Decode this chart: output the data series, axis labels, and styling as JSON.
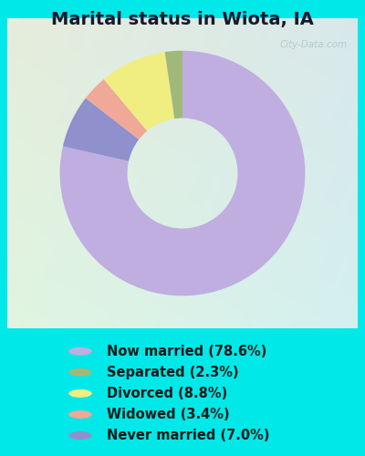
{
  "title": "Marital status in Wiota, IA",
  "title_fontsize": 14,
  "title_fontweight": "bold",
  "bg_outer": "#00e8e8",
  "slices": [
    {
      "label": "Now married (78.6%)",
      "value": 78.6,
      "color": "#c0aee0"
    },
    {
      "label": "Separated (2.3%)",
      "value": 2.3,
      "color": "#a0b87a"
    },
    {
      "label": "Divorced (8.8%)",
      "value": 8.8,
      "color": "#f0ee80"
    },
    {
      "label": "Widowed (3.4%)",
      "value": 3.4,
      "color": "#f0a898"
    },
    {
      "label": "Never married (7.0%)",
      "value": 7.0,
      "color": "#9090cc"
    }
  ],
  "donut_width": 0.55,
  "legend_fontsize": 10.5,
  "watermark": "City-Data.com",
  "start_angle": 90,
  "chart_bg_colors": [
    "#e8f5e0",
    "#c8ede0"
  ],
  "chart_bg_left": "#d8f0d0",
  "chart_bg_right": "#c8eee8"
}
